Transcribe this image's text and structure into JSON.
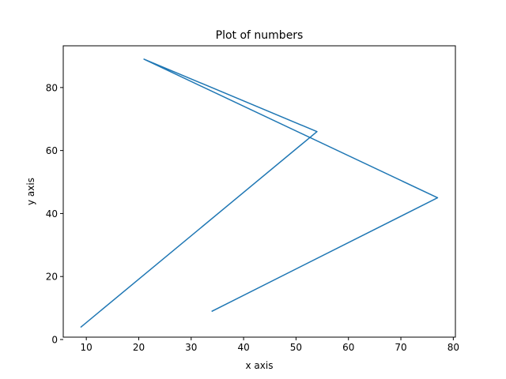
{
  "chart_data": {
    "type": "line",
    "title": "Plot of numbers",
    "xlabel": "x axis",
    "ylabel": "y axis",
    "xlim": [
      5.6,
      80.4
    ],
    "ylim": [
      0.75,
      93.25
    ],
    "xticks": [
      10,
      20,
      30,
      40,
      50,
      60,
      70,
      80
    ],
    "yticks": [
      0,
      20,
      40,
      60,
      80
    ],
    "grid": false,
    "series": [
      {
        "color": "#1f77b4",
        "x": [
          34,
          77,
          21,
          54,
          9
        ],
        "y": [
          9,
          45,
          89,
          66,
          4
        ]
      }
    ]
  }
}
